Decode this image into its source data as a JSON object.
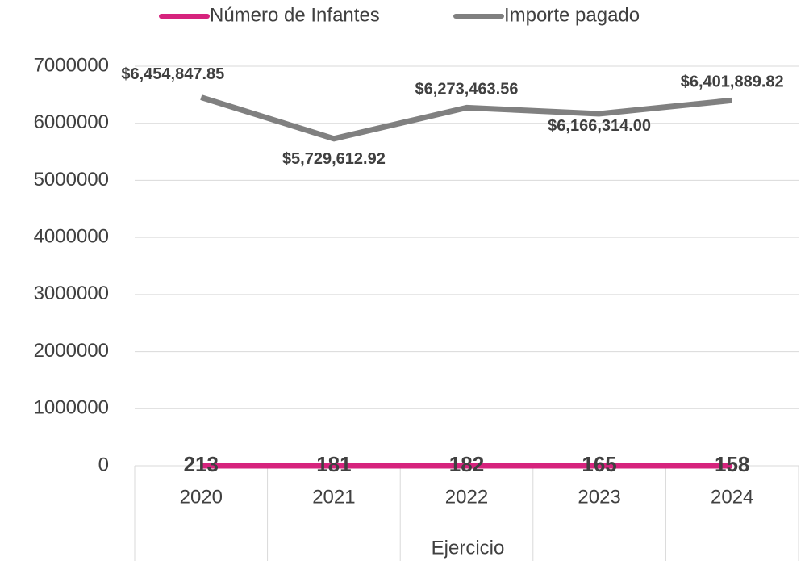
{
  "chart_data": {
    "type": "line",
    "x_label": "Ejercicio",
    "categories": [
      "2020",
      "2021",
      "2022",
      "2023",
      "2024"
    ],
    "series": [
      {
        "name": "Número de Infantes",
        "color": "#d6237d",
        "values": [
          213,
          181,
          182,
          165,
          158
        ]
      },
      {
        "name": "Importe pagado",
        "color": "#808080",
        "values": [
          6454847.85,
          5729612.92,
          6273463.56,
          6166314.0,
          6401889.82
        ],
        "value_labels": [
          "$6,454,847.85",
          "$5,729,612.92",
          "$6,273,463.56",
          "$6,166,314.00",
          "$6,401,889.82"
        ]
      }
    ],
    "ylim": [
      0,
      7000000
    ],
    "yticks": [
      0,
      1000000,
      2000000,
      3000000,
      4000000,
      5000000,
      6000000,
      7000000
    ],
    "grid": true,
    "legend": "top"
  }
}
